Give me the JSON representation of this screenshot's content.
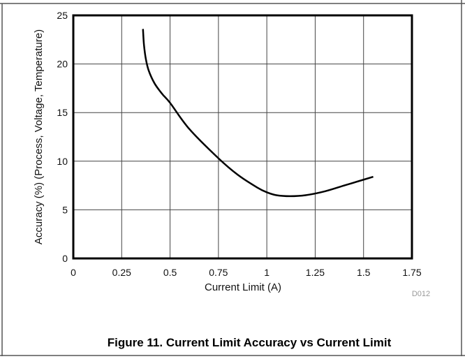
{
  "chart_data": {
    "type": "line",
    "title": "Figure 11. Current Limit Accuracy vs Current Limit",
    "xlabel": "Current Limit (A)",
    "ylabel": "Accuracy (%) (Process, Voltage, Temperature)",
    "xlim": [
      0,
      1.75
    ],
    "ylim": [
      0,
      25
    ],
    "xticks": [
      "0",
      "0.25",
      "0.5",
      "0.75",
      "1",
      "1.25",
      "1.5",
      "1.75"
    ],
    "yticks": [
      "0",
      "5",
      "10",
      "15",
      "20",
      "25"
    ],
    "grid": true,
    "code": "D012",
    "series": [
      {
        "name": "Accuracy",
        "color": "#000000",
        "x": [
          0.36,
          0.365,
          0.375,
          0.39,
          0.42,
          0.46,
          0.5,
          0.6,
          0.75,
          0.85,
          0.95,
          1.0,
          1.05,
          1.12,
          1.2,
          1.3,
          1.4,
          1.5,
          1.55
        ],
        "y": [
          23.6,
          22.0,
          20.5,
          19.3,
          18.0,
          16.9,
          16.0,
          13.3,
          10.3,
          8.6,
          7.3,
          6.8,
          6.5,
          6.4,
          6.5,
          6.9,
          7.5,
          8.1,
          8.4
        ]
      }
    ]
  }
}
